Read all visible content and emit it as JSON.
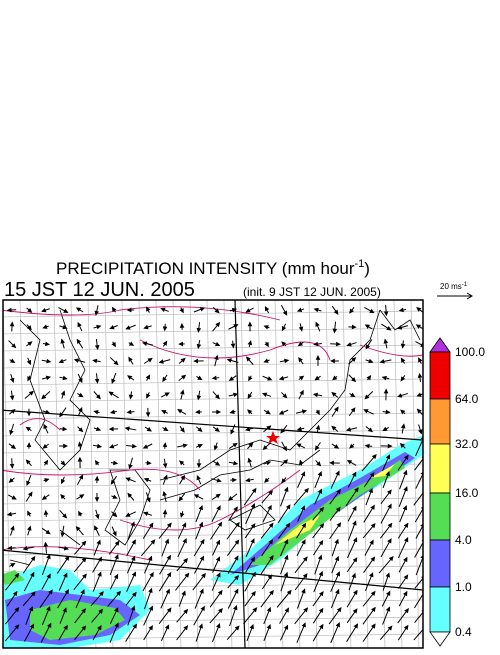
{
  "header": {
    "title_main": "PRECIPITATION INTENSITY (mm hour",
    "title_sup": "-1",
    "title_end": ")",
    "time": "15 JST 12 JUN. 2005",
    "init": "(init. 9 JST 12 JUN. 2005)"
  },
  "vector_legend": {
    "label": "20 ms",
    "sup": "-1"
  },
  "colorbar": {
    "labels": [
      "100.0",
      "64.0",
      "32.0",
      "16.0",
      "4.0",
      "1.0",
      "0.4"
    ]
  }
}
